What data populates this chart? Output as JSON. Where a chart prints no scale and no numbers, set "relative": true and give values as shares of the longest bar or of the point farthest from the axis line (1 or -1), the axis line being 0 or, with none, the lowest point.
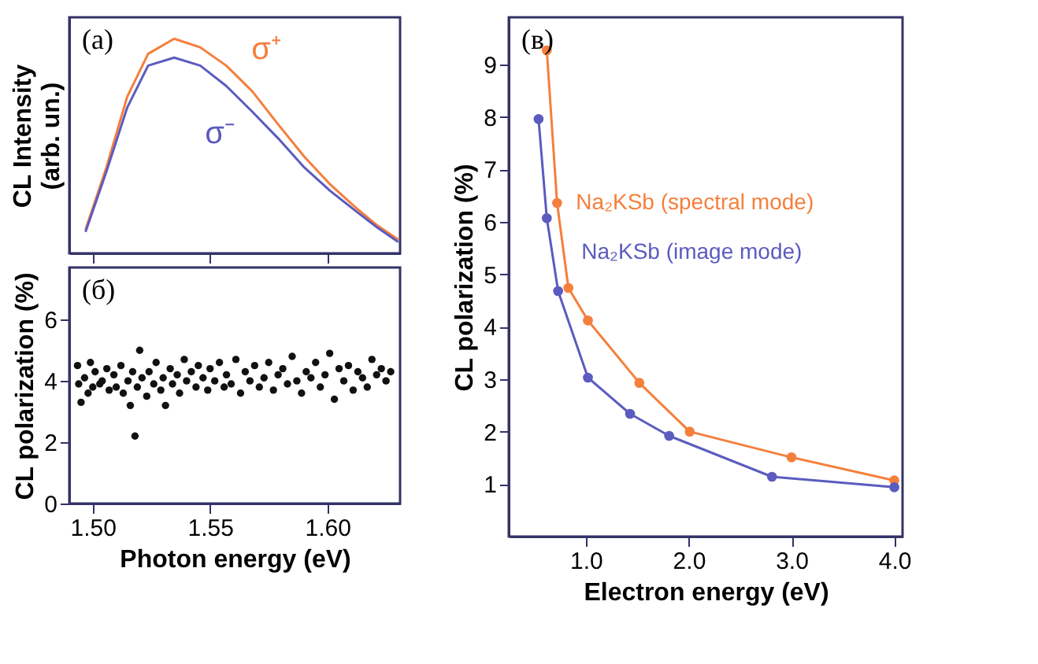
{
  "chart_data": [
    {
      "type": "line",
      "relative": true,
      "ylabel": "CL Intensity (arb. un.)",
      "xlim": [
        1.49,
        1.631
      ],
      "xticks": [
        {
          "value": 1.5,
          "label": null
        },
        {
          "value": 1.55,
          "label": null
        },
        {
          "value": 1.6,
          "label": null
        }
      ],
      "tick_labels": false,
      "annotations": [
        "(a)"
      ],
      "x": [
        1.4969,
        1.5058,
        1.5147,
        1.5236,
        1.5347,
        1.5458,
        1.5569,
        1.568,
        1.5791,
        1.5902,
        1.6013,
        1.6124,
        1.6213,
        1.6302
      ],
      "series": [
        {
          "name": "σ⁺",
          "color": "#f57f3c",
          "values": [
            0.11,
            0.4,
            0.73,
            0.93,
            1.0,
            0.96,
            0.875,
            0.755,
            0.6,
            0.45,
            0.32,
            0.21,
            0.13,
            0.064
          ]
        },
        {
          "name": "σ⁻",
          "color": "#5b5bc0",
          "values": [
            0.1,
            0.38,
            0.68,
            0.875,
            0.912,
            0.875,
            0.78,
            0.66,
            0.535,
            0.4,
            0.29,
            0.195,
            0.12,
            0.053
          ]
        }
      ]
    },
    {
      "type": "scatter",
      "xlabel": "Photon energy (eV)",
      "ylabel": "CL polarization (%)",
      "xlim": [
        1.49,
        1.631
      ],
      "ylim": [
        0,
        7.7
      ],
      "xticks": [
        {
          "value": 1.5,
          "label": "1.50"
        },
        {
          "value": 1.55,
          "label": "1.55"
        },
        {
          "value": 1.6,
          "label": "1.60"
        }
      ],
      "yticks": [
        0,
        2,
        4,
        6
      ],
      "annotations": [
        "(б)"
      ],
      "marker": "circle",
      "series": [
        {
          "color": "#111111",
          "x": [
            1.4935,
            1.494,
            1.495,
            1.4965,
            1.498,
            1.499,
            1.5,
            1.501,
            1.503,
            1.504,
            1.506,
            1.507,
            1.509,
            1.51,
            1.512,
            1.513,
            1.515,
            1.516,
            1.517,
            1.518,
            1.519,
            1.52,
            1.521,
            1.523,
            1.524,
            1.526,
            1.527,
            1.529,
            1.53,
            1.531,
            1.533,
            1.534,
            1.536,
            1.537,
            1.539,
            1.54,
            1.542,
            1.544,
            1.545,
            1.547,
            1.549,
            1.55,
            1.552,
            1.554,
            1.556,
            1.557,
            1.559,
            1.561,
            1.563,
            1.565,
            1.567,
            1.569,
            1.571,
            1.573,
            1.575,
            1.577,
            1.579,
            1.581,
            1.583,
            1.585,
            1.587,
            1.589,
            1.591,
            1.593,
            1.595,
            1.597,
            1.599,
            1.601,
            1.603,
            1.605,
            1.607,
            1.609,
            1.611,
            1.613,
            1.615,
            1.617,
            1.619,
            1.621,
            1.623,
            1.625,
            1.627
          ],
          "values": [
            4.5,
            3.9,
            3.3,
            4.1,
            3.6,
            4.6,
            3.8,
            4.3,
            3.9,
            4.0,
            4.4,
            3.7,
            4.2,
            3.8,
            4.5,
            3.6,
            4.0,
            3.2,
            4.3,
            2.2,
            3.8,
            5.0,
            4.1,
            3.5,
            4.3,
            3.9,
            4.6,
            3.7,
            4.1,
            3.2,
            4.4,
            3.9,
            4.2,
            3.6,
            4.7,
            4.0,
            4.3,
            3.8,
            4.5,
            4.1,
            3.7,
            4.4,
            4.0,
            4.6,
            3.8,
            4.2,
            3.9,
            4.7,
            3.6,
            4.3,
            4.0,
            4.5,
            3.8,
            4.1,
            4.6,
            3.7,
            4.2,
            4.4,
            3.9,
            4.8,
            4.0,
            3.6,
            4.3,
            4.1,
            4.6,
            3.8,
            4.2,
            4.9,
            3.4,
            4.4,
            4.0,
            4.5,
            3.7,
            4.3,
            4.1,
            3.8,
            4.7,
            4.2,
            4.4,
            4.0,
            4.3
          ]
        }
      ]
    },
    {
      "type": "line",
      "xlabel": "Electron energy (eV)",
      "ylabel": "CL polarization (%)",
      "xlim": [
        0.25,
        4.08
      ],
      "ylim": [
        0,
        9.9
      ],
      "xticks": [
        {
          "value": 1,
          "label": "1.0"
        },
        {
          "value": 2,
          "label": "2.0"
        },
        {
          "value": 3,
          "label": "3.0"
        },
        {
          "value": 4,
          "label": "4.0"
        }
      ],
      "yticks": [
        1,
        2,
        3,
        4,
        5,
        6,
        7,
        8,
        9
      ],
      "annotations": [
        "(в)"
      ],
      "marker": "circle",
      "series": [
        {
          "name": "Na₂KSb (spectral mode)",
          "color": "#f57f3c",
          "x": [
            0.62,
            0.72,
            0.83,
            1.02,
            1.52,
            2.01,
            3.0,
            4.0
          ],
          "values": [
            9.27,
            6.36,
            4.74,
            4.12,
            2.93,
            2.0,
            1.51,
            1.07
          ]
        },
        {
          "name": "Na₂KSb (image mode)",
          "color": "#5b5bc0",
          "x": [
            0.54,
            0.62,
            0.73,
            1.02,
            1.43,
            1.81,
            2.81,
            4.0
          ],
          "values": [
            7.96,
            6.07,
            4.68,
            3.03,
            2.34,
            1.92,
            1.14,
            0.94
          ]
        }
      ]
    }
  ]
}
